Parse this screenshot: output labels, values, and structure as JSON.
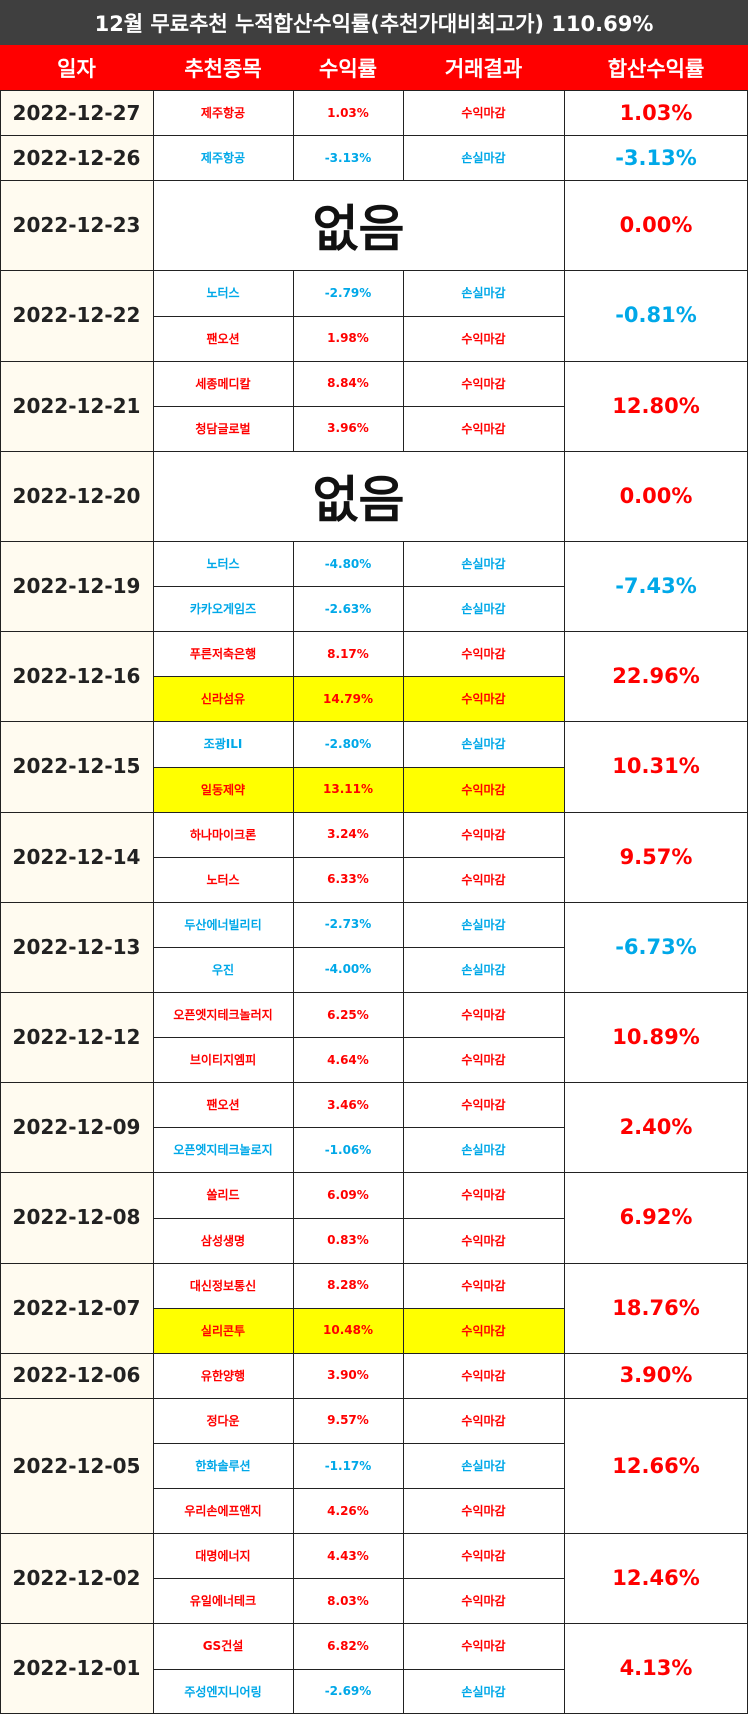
{
  "title": "12월 무료추천 누적합산수익률(추천가대비최고가) 110.69%",
  "headers": [
    "일자",
    "추천종목",
    "수익률",
    "거래결과",
    "합산수익률"
  ],
  "colors": {
    "header": "#ff0000",
    "title_bar": "#3f3f3f",
    "profit": "#ff0000",
    "loss": "#00a8e8",
    "highlight": "#ffff00",
    "date_bg": "#fffbf0"
  },
  "groups": [
    {
      "date": "2022-12-27",
      "total": "1.03%",
      "total_color": "red",
      "none": null,
      "items": [
        {
          "stock": "제주항공",
          "rate": "1.03%",
          "result": "수익마감",
          "color": "red",
          "highlight": false
        }
      ]
    },
    {
      "date": "2022-12-26",
      "total": "-3.13%",
      "total_color": "blue",
      "none": null,
      "items": [
        {
          "stock": "제주항공",
          "rate": "-3.13%",
          "result": "손실마감",
          "color": "blue",
          "highlight": false
        }
      ]
    },
    {
      "date": "2022-12-23",
      "total": "0.00%",
      "total_color": "red",
      "none": "없음",
      "items": []
    },
    {
      "date": "2022-12-22",
      "total": "-0.81%",
      "total_color": "blue",
      "none": null,
      "items": [
        {
          "stock": "노터스",
          "rate": "-2.79%",
          "result": "손실마감",
          "color": "blue",
          "highlight": false
        },
        {
          "stock": "팬오션",
          "rate": "1.98%",
          "result": "수익마감",
          "color": "red",
          "highlight": false
        }
      ]
    },
    {
      "date": "2022-12-21",
      "total": "12.80%",
      "total_color": "red",
      "none": null,
      "items": [
        {
          "stock": "세종메디칼",
          "rate": "8.84%",
          "result": "수익마감",
          "color": "red",
          "highlight": false
        },
        {
          "stock": "청담글로벌",
          "rate": "3.96%",
          "result": "수익마감",
          "color": "red",
          "highlight": false
        }
      ]
    },
    {
      "date": "2022-12-20",
      "total": "0.00%",
      "total_color": "red",
      "none": "없음",
      "items": []
    },
    {
      "date": "2022-12-19",
      "total": "-7.43%",
      "total_color": "blue",
      "none": null,
      "items": [
        {
          "stock": "노터스",
          "rate": "-4.80%",
          "result": "손실마감",
          "color": "blue",
          "highlight": false
        },
        {
          "stock": "카카오게임즈",
          "rate": "-2.63%",
          "result": "손실마감",
          "color": "blue",
          "highlight": false
        }
      ]
    },
    {
      "date": "2022-12-16",
      "total": "22.96%",
      "total_color": "red",
      "none": null,
      "items": [
        {
          "stock": "푸른저축은행",
          "rate": "8.17%",
          "result": "수익마감",
          "color": "red",
          "highlight": false
        },
        {
          "stock": "신라섬유",
          "rate": "14.79%",
          "result": "수익마감",
          "color": "red",
          "highlight": true
        }
      ]
    },
    {
      "date": "2022-12-15",
      "total": "10.31%",
      "total_color": "red",
      "none": null,
      "items": [
        {
          "stock": "조광ILI",
          "rate": "-2.80%",
          "result": "손실마감",
          "color": "blue",
          "highlight": false
        },
        {
          "stock": "일동제약",
          "rate": "13.11%",
          "result": "수익마감",
          "color": "red",
          "highlight": true
        }
      ]
    },
    {
      "date": "2022-12-14",
      "total": "9.57%",
      "total_color": "red",
      "none": null,
      "items": [
        {
          "stock": "하나마이크론",
          "rate": "3.24%",
          "result": "수익마감",
          "color": "red",
          "highlight": false
        },
        {
          "stock": "노터스",
          "rate": "6.33%",
          "result": "수익마감",
          "color": "red",
          "highlight": false
        }
      ]
    },
    {
      "date": "2022-12-13",
      "total": "-6.73%",
      "total_color": "blue",
      "none": null,
      "items": [
        {
          "stock": "두산에너빌리티",
          "rate": "-2.73%",
          "result": "손실마감",
          "color": "blue",
          "highlight": false
        },
        {
          "stock": "우진",
          "rate": "-4.00%",
          "result": "손실마감",
          "color": "blue",
          "highlight": false
        }
      ]
    },
    {
      "date": "2022-12-12",
      "total": "10.89%",
      "total_color": "red",
      "none": null,
      "items": [
        {
          "stock": "오픈엣지테크놀러지",
          "rate": "6.25%",
          "result": "수익마감",
          "color": "red",
          "highlight": false
        },
        {
          "stock": "브이티지엠피",
          "rate": "4.64%",
          "result": "수익마감",
          "color": "red",
          "highlight": false
        }
      ]
    },
    {
      "date": "2022-12-09",
      "total": "2.40%",
      "total_color": "red",
      "none": null,
      "items": [
        {
          "stock": "팬오션",
          "rate": "3.46%",
          "result": "수익마감",
          "color": "red",
          "highlight": false
        },
        {
          "stock": "오픈엣지테크놀로지",
          "rate": "-1.06%",
          "result": "손실마감",
          "color": "blue",
          "highlight": false
        }
      ]
    },
    {
      "date": "2022-12-08",
      "total": "6.92%",
      "total_color": "red",
      "none": null,
      "items": [
        {
          "stock": "쏠리드",
          "rate": "6.09%",
          "result": "수익마감",
          "color": "red",
          "highlight": false
        },
        {
          "stock": "삼성생명",
          "rate": "0.83%",
          "result": "수익마감",
          "color": "red",
          "highlight": false
        }
      ]
    },
    {
      "date": "2022-12-07",
      "total": "18.76%",
      "total_color": "red",
      "none": null,
      "items": [
        {
          "stock": "대신정보통신",
          "rate": "8.28%",
          "result": "수익마감",
          "color": "red",
          "highlight": false
        },
        {
          "stock": "실리콘투",
          "rate": "10.48%",
          "result": "수익마감",
          "color": "red",
          "highlight": true
        }
      ]
    },
    {
      "date": "2022-12-06",
      "total": "3.90%",
      "total_color": "red",
      "none": null,
      "items": [
        {
          "stock": "유한양행",
          "rate": "3.90%",
          "result": "수익마감",
          "color": "red",
          "highlight": false
        }
      ]
    },
    {
      "date": "2022-12-05",
      "total": "12.66%",
      "total_color": "red",
      "none": null,
      "items": [
        {
          "stock": "정다운",
          "rate": "9.57%",
          "result": "수익마감",
          "color": "red",
          "highlight": false
        },
        {
          "stock": "한화솔루션",
          "rate": "-1.17%",
          "result": "손실마감",
          "color": "blue",
          "highlight": false
        },
        {
          "stock": "우리손에프앤지",
          "rate": "4.26%",
          "result": "수익마감",
          "color": "red",
          "highlight": false
        }
      ]
    },
    {
      "date": "2022-12-02",
      "total": "12.46%",
      "total_color": "red",
      "none": null,
      "items": [
        {
          "stock": "대명에너지",
          "rate": "4.43%",
          "result": "수익마감",
          "color": "red",
          "highlight": false
        },
        {
          "stock": "유일에너테크",
          "rate": "8.03%",
          "result": "수익마감",
          "color": "red",
          "highlight": false
        }
      ]
    },
    {
      "date": "2022-12-01",
      "total": "4.13%",
      "total_color": "red",
      "none": null,
      "items": [
        {
          "stock": "GS건설",
          "rate": "6.82%",
          "result": "수익마감",
          "color": "red",
          "highlight": false
        },
        {
          "stock": "주성엔지니어링",
          "rate": "-2.69%",
          "result": "손실마감",
          "color": "blue",
          "highlight": false
        }
      ]
    }
  ]
}
